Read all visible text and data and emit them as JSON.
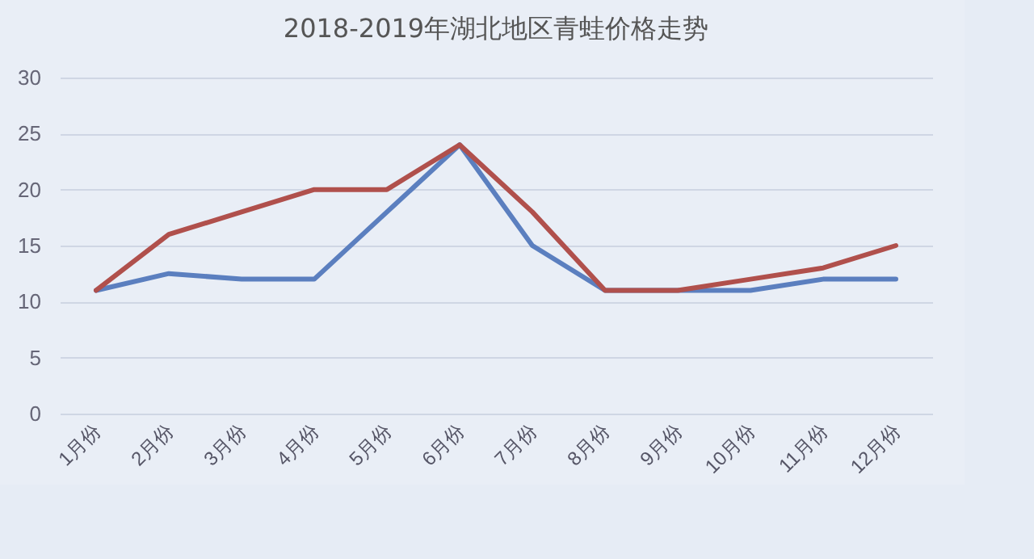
{
  "chart_data": {
    "type": "line",
    "title": "2018-2019年湖北地区青蛙价格走势",
    "categories": [
      "1月份",
      "2月份",
      "3月份",
      "4月份",
      "5月份",
      "6月份",
      "7月份",
      "8月份",
      "9月份",
      "10月份",
      "11月份",
      "12月份"
    ],
    "series": [
      {
        "color": "#5b7fbf",
        "values": [
          11,
          12.5,
          12,
          12,
          18,
          24,
          15,
          11,
          11,
          11,
          12,
          12
        ]
      },
      {
        "color": "#b0504c",
        "values": [
          11,
          16,
          18,
          20,
          20,
          24,
          18,
          11,
          11,
          12,
          13,
          15
        ]
      }
    ],
    "ylim": [
      0,
      30
    ],
    "yticks": [
      0,
      5,
      10,
      15,
      20,
      25,
      30
    ],
    "grid": "y",
    "legend": false,
    "marker": "none",
    "line_style": "solid"
  }
}
